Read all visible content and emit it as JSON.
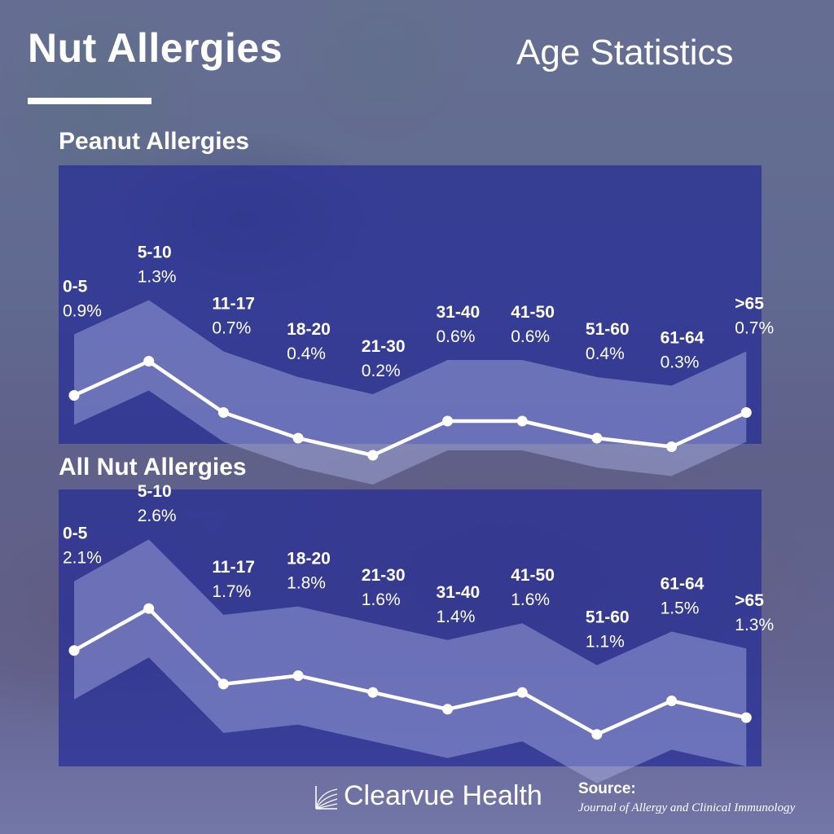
{
  "header": {
    "title": "Nut Allergies",
    "subtitle": "Age Statistics"
  },
  "footer": {
    "brand": "Clearvue Health",
    "brand_icon": "clearvue-logo-mark",
    "source_label": "Source:",
    "source_text": "Journal of Allergy and Clinical Immunology"
  },
  "colors": {
    "overlay": "#40469A",
    "panel": "#262C96",
    "line": "#FFFFFF",
    "band": "#AEB3E6"
  },
  "chart_data": [
    {
      "type": "line",
      "title": "Peanut Allergies",
      "unit": "%",
      "categories": [
        "0-5",
        "5-10",
        "11-17",
        "18-20",
        "21-30",
        "31-40",
        "41-50",
        "51-60",
        "61-64",
        ">65"
      ],
      "series": [
        {
          "values": [
            0.9,
            1.3,
            0.7,
            0.4,
            0.2,
            0.6,
            0.6,
            0.4,
            0.3,
            0.7
          ]
        }
      ],
      "value_labels": [
        "0.9%",
        "1.3%",
        "0.7%",
        "0.4%",
        "0.2%",
        "0.6%",
        "0.6%",
        "0.4%",
        "0.3%",
        "0.7%"
      ],
      "grid": false,
      "legend": "none"
    },
    {
      "type": "line",
      "title": "All Nut Allergies",
      "unit": "%",
      "categories": [
        "0-5",
        "5-10",
        "11-17",
        "18-20",
        "21-30",
        "31-40",
        "41-50",
        "51-60",
        "61-64",
        ">65"
      ],
      "series": [
        {
          "values": [
            2.1,
            2.6,
            1.7,
            1.8,
            1.6,
            1.4,
            1.6,
            1.1,
            1.5,
            1.3
          ]
        }
      ],
      "value_labels": [
        "2.1%",
        "2.6%",
        "1.7%",
        "1.8%",
        "1.6%",
        "1.4%",
        "1.6%",
        "1.1%",
        "1.5%",
        "1.3%"
      ],
      "grid": false,
      "legend": "none"
    }
  ]
}
